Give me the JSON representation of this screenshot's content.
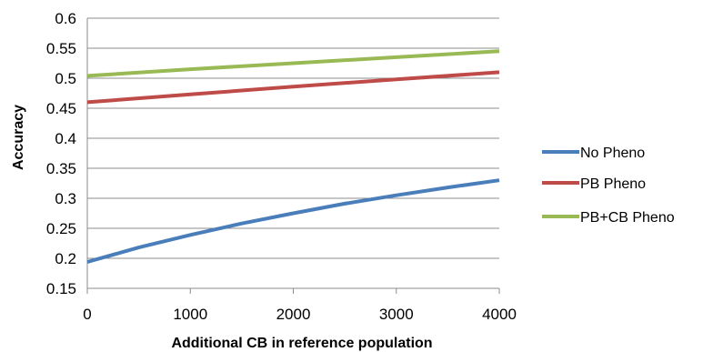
{
  "chart_data": {
    "type": "line",
    "title": "",
    "xlabel": "Additional CB in reference population",
    "ylabel": "Accuracy",
    "xlim": [
      0,
      4000
    ],
    "ylim": [
      0.15,
      0.6
    ],
    "x_ticks": [
      0,
      1000,
      2000,
      3000,
      4000
    ],
    "x_tick_labels": [
      "0",
      "1000",
      "2000",
      "3000",
      "4000"
    ],
    "y_ticks": [
      0.15,
      0.2,
      0.25,
      0.3,
      0.35,
      0.4,
      0.45,
      0.5,
      0.55,
      0.6
    ],
    "y_tick_labels": [
      "0.15",
      "0.2",
      "0.25",
      "0.3",
      "0.35",
      "0.4",
      "0.45",
      "0.5",
      "0.55",
      "0.6"
    ],
    "grid": "horizontal",
    "legend_position": "right",
    "series": [
      {
        "name": "No Pheno",
        "color": "#4a7ebb",
        "x": [
          0,
          500,
          1000,
          1500,
          2000,
          2500,
          3000,
          3500,
          4000
        ],
        "y": [
          0.194,
          0.218,
          0.239,
          0.258,
          0.275,
          0.291,
          0.305,
          0.318,
          0.33
        ]
      },
      {
        "name": "PB Pheno",
        "color": "#be4b48",
        "x": [
          0,
          1000,
          2000,
          3000,
          4000
        ],
        "y": [
          0.46,
          0.473,
          0.486,
          0.498,
          0.51
        ]
      },
      {
        "name": "PB+CB Pheno",
        "color": "#98b954",
        "x": [
          0,
          1000,
          2000,
          3000,
          4000
        ],
        "y": [
          0.504,
          0.515,
          0.525,
          0.535,
          0.545
        ]
      }
    ]
  }
}
